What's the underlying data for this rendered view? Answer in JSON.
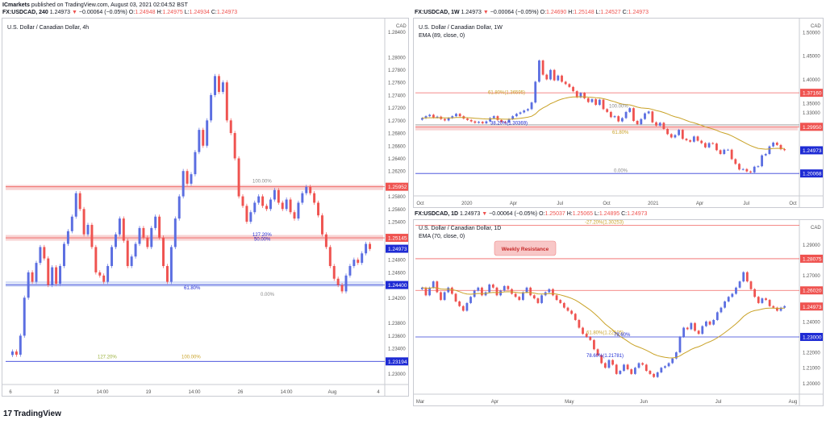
{
  "header": {
    "publisher": "ICmarkets",
    "published_text": "published on TradingView.com, August 03, 2021 02:04:52 BST",
    "symbol": "FX:USDCAD, 240",
    "price": "1.24973",
    "arrow": "▼",
    "change": "−0.00064 (−0.05%)",
    "o_label": "O:",
    "o_value": "1.24948",
    "h_label": "H:",
    "h_value": "1.24975",
    "l_label": "L:",
    "l_value": "1.24934",
    "c_label": "C:",
    "c_value": "1.24973"
  },
  "weekly": {
    "symbol": "FX:USDCAD, 1W",
    "price": "1.24973",
    "arrow": "▼",
    "change": "−0.00064 (−0.05%)",
    "o_label": "O:",
    "o_value": "1.24690",
    "h_label": "H:",
    "h_value": "1.25148",
    "l_label": "L:",
    "l_value": "1.24527",
    "c_label": "C:",
    "c_value": "1.24973"
  },
  "daily": {
    "symbol": "FX:USDCAD, 1D",
    "price": "1.24973",
    "arrow": "▼",
    "change": "−0.00064 (−0.05%)",
    "o_label": "O:",
    "o_value": "1.25037",
    "h_label": "H:",
    "h_value": "1.25065",
    "l_label": "L:",
    "l_value": "1.24895",
    "c_label": "C:",
    "c_value": "1.24973"
  },
  "footer": {
    "brand": "TradingView",
    "mark": "17"
  },
  "colors": {
    "up": "#5b6ee1",
    "down": "#ef5350",
    "ema": "#c9a227",
    "zone": "#f5c2c2",
    "support": "#c9d4f5"
  },
  "chart_data": [
    {
      "type": "candlestick",
      "title": "U.S. Dollar / Canadian Dollar, 4h",
      "currency": "CAD",
      "x_ticks": [
        "6",
        "12",
        "14:00",
        "19",
        "14:00",
        "26",
        "14:00",
        "Aug",
        "4"
      ],
      "y_ticks": [
        "1.28400",
        "1.28000",
        "1.27800",
        "1.27600",
        "1.27400",
        "1.27200",
        "1.27000",
        "1.26800",
        "1.26600",
        "1.26400",
        "1.26200",
        "1.25800",
        "1.25600",
        "1.25400",
        "1.24800",
        "1.24600",
        "1.24200",
        "1.23800",
        "1.23600",
        "1.23400",
        "1.23000"
      ],
      "ylim": [
        1.2288,
        1.2843
      ],
      "price_labels": [
        {
          "text": "1.25952",
          "value": 1.25952,
          "color": "#ef5350"
        },
        {
          "text": "1.25145",
          "value": 1.25145,
          "color": "#ef5350"
        },
        {
          "text": "1.24973",
          "value": 1.24973,
          "color": "#1e2bd4"
        },
        {
          "text": "1.24400",
          "value": 1.244,
          "color": "#1e2bd4"
        },
        {
          "text": "1.23194",
          "value": 1.23194,
          "color": "#1e2bd4"
        }
      ],
      "annotations": [
        "100.00%",
        "127.20%",
        "50.00%",
        "61.80%",
        "0.00%",
        "127.20%",
        "100.00%"
      ],
      "closes": [
        1.2335,
        1.233,
        1.236,
        1.242,
        1.246,
        1.2445,
        1.2475,
        1.25,
        1.2482,
        1.244,
        1.2468,
        1.2442,
        1.247,
        1.2505,
        1.2525,
        1.2548,
        1.2585,
        1.256,
        1.252,
        1.2535,
        1.25,
        1.246,
        1.2455,
        1.2445,
        1.247,
        1.25,
        1.252,
        1.2545,
        1.251,
        1.247,
        1.2485,
        1.2505,
        1.253,
        1.2515,
        1.25,
        1.253,
        1.2548,
        1.2515,
        1.247,
        1.2445,
        1.25,
        1.2545,
        1.258,
        1.262,
        1.26,
        1.2615,
        1.265,
        1.2685,
        1.266,
        1.27,
        1.274,
        1.277,
        1.2745,
        1.276,
        1.27,
        1.268,
        1.264,
        1.258,
        1.2565,
        1.254,
        1.2555,
        1.257,
        1.258,
        1.2565,
        1.256,
        1.2575,
        1.259,
        1.257,
        1.256,
        1.2575,
        1.2555,
        1.2545,
        1.257,
        1.2585,
        1.2595,
        1.2585,
        1.257,
        1.255,
        1.252,
        1.25,
        1.247,
        1.245,
        1.244,
        1.243,
        1.2455,
        1.247,
        1.248,
        1.2475,
        1.249,
        1.2505,
        1.2497
      ]
    },
    {
      "type": "candlestick",
      "title": "U.S. Dollar / Canadian Dollar, 1W",
      "subtitle": "EMA (89, close, 0)",
      "currency": "CAD",
      "x_ticks": [
        "Oct",
        "2020",
        "Apr",
        "Jul",
        "Oct",
        "2021",
        "Apr",
        "Jul",
        "Oct"
      ],
      "y_ticks": [
        "1.50000",
        "1.45000",
        "1.40000",
        "1.35000",
        "1.33000",
        "1.25000",
        "1.15000"
      ],
      "ylim": [
        1.16,
        1.505
      ],
      "price_labels": [
        {
          "text": "1.37160",
          "value": 1.3716,
          "color": "#ef5350"
        },
        {
          "text": "1.29950",
          "value": 1.2995,
          "color": "#ef5350"
        },
        {
          "text": "1.24973",
          "value": 1.24973,
          "color": "#1e2bd4"
        },
        {
          "text": "1.20068",
          "value": 1.20068,
          "color": "#1e2bd4"
        }
      ],
      "annotations": [
        "61.80%(1.36595)",
        "100.00%",
        "38.20%(1.30369)",
        "61.80%",
        "0.00%"
      ],
      "closes": [
        1.318,
        1.322,
        1.325,
        1.319,
        1.321,
        1.316,
        1.313,
        1.318,
        1.322,
        1.327,
        1.322,
        1.317,
        1.314,
        1.311,
        1.308,
        1.31,
        1.307,
        1.311,
        1.318,
        1.322,
        1.314,
        1.31,
        1.309,
        1.316,
        1.322,
        1.327,
        1.33,
        1.334,
        1.337,
        1.351,
        1.395,
        1.44,
        1.41,
        1.4,
        1.42,
        1.398,
        1.408,
        1.395,
        1.39,
        1.384,
        1.375,
        1.362,
        1.371,
        1.36,
        1.352,
        1.358,
        1.346,
        1.357,
        1.337,
        1.331,
        1.32,
        1.322,
        1.311,
        1.318,
        1.331,
        1.339,
        1.312,
        1.305,
        1.316,
        1.328,
        1.332,
        1.309,
        1.302,
        1.308,
        1.295,
        1.284,
        1.277,
        1.282,
        1.293,
        1.274,
        1.271,
        1.268,
        1.279,
        1.27,
        1.265,
        1.256,
        1.265,
        1.264,
        1.25,
        1.242,
        1.251,
        1.251,
        1.231,
        1.221,
        1.209,
        1.21,
        1.205,
        1.203,
        1.215,
        1.216,
        1.239,
        1.242,
        1.258,
        1.266,
        1.261,
        1.252,
        1.25
      ]
    },
    {
      "type": "candlestick",
      "title": "U.S. Dollar / Canadian Dollar, 1D",
      "subtitle": "EMA (70, close, 0)",
      "currency": "CAD",
      "x_ticks": [
        "Mar",
        "Apr",
        "May",
        "Jun",
        "Jul",
        "Aug"
      ],
      "y_ticks": [
        "1.29000",
        "1.28000",
        "1.27000",
        "1.26000",
        "1.25000",
        "1.24000",
        "1.23000",
        "1.22000",
        "1.21000",
        "1.20000"
      ],
      "ylim": [
        1.196,
        1.2985
      ],
      "price_labels": [
        {
          "text": "1.28075",
          "value": 1.28075,
          "color": "#ef5350"
        },
        {
          "text": "1.26020",
          "value": 1.2602,
          "color": "#ef5350"
        },
        {
          "text": "1.24973",
          "value": 1.24973,
          "color": "#ef5350"
        },
        {
          "text": "1.23000",
          "value": 1.23,
          "color": "#1e2bd4"
        }
      ],
      "annotations": [
        "-27.20%(1.30253)",
        "Weekly Resistance",
        "61.80%(1.22105)",
        "78.60%",
        "78.60%(1.21781)"
      ],
      "closes": [
        1.262,
        1.257,
        1.262,
        1.266,
        1.259,
        1.254,
        1.259,
        1.262,
        1.258,
        1.253,
        1.25,
        1.247,
        1.252,
        1.256,
        1.26,
        1.262,
        1.257,
        1.259,
        1.264,
        1.262,
        1.257,
        1.26,
        1.263,
        1.261,
        1.258,
        1.256,
        1.254,
        1.259,
        1.262,
        1.257,
        1.255,
        1.252,
        1.257,
        1.259,
        1.261,
        1.257,
        1.254,
        1.252,
        1.249,
        1.247,
        1.245,
        1.241,
        1.236,
        1.232,
        1.23,
        1.228,
        1.222,
        1.218,
        1.213,
        1.21,
        1.215,
        1.212,
        1.206,
        1.208,
        1.212,
        1.209,
        1.206,
        1.21,
        1.213,
        1.212,
        1.208,
        1.206,
        1.204,
        1.207,
        1.21,
        1.211,
        1.213,
        1.216,
        1.22,
        1.23,
        1.236,
        1.235,
        1.239,
        1.234,
        1.232,
        1.237,
        1.24,
        1.238,
        1.241,
        1.246,
        1.249,
        1.253,
        1.256,
        1.258,
        1.262,
        1.266,
        1.272,
        1.266,
        1.261,
        1.256,
        1.252,
        1.255,
        1.254,
        1.25,
        1.249,
        1.247,
        1.249,
        1.25
      ]
    }
  ]
}
